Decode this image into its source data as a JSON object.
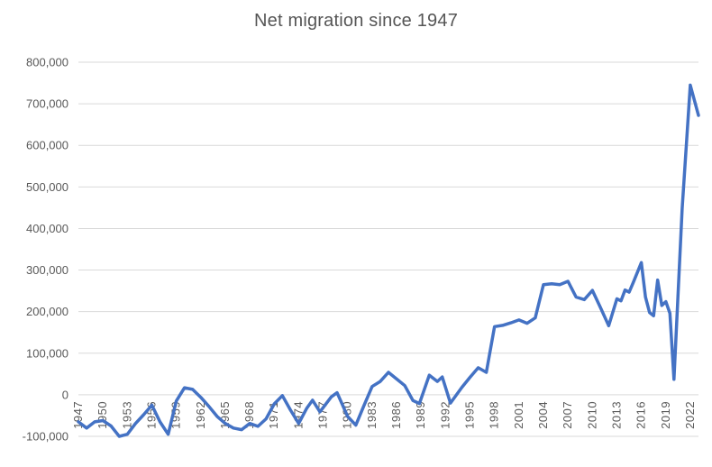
{
  "chart_data": {
    "type": "line",
    "title": "Net migration since 1947",
    "xlabel": "",
    "ylabel": "",
    "xlim": [
      1947,
      2023
    ],
    "ylim": [
      -100000,
      800000
    ],
    "grid": "horizontal-only",
    "legend": "none",
    "colors": {
      "line": "#4472C4",
      "gridline": "#D9D9D9",
      "tick_text": "#595959",
      "title_text": "#555555",
      "background": "#FFFFFF"
    },
    "y_ticks": [
      {
        "value": 800000,
        "label": "800,000"
      },
      {
        "value": 700000,
        "label": "700,000"
      },
      {
        "value": 600000,
        "label": "600,000"
      },
      {
        "value": 500000,
        "label": "500,000"
      },
      {
        "value": 400000,
        "label": "400,000"
      },
      {
        "value": 300000,
        "label": "300,000"
      },
      {
        "value": 200000,
        "label": "200,000"
      },
      {
        "value": 100000,
        "label": "100,000"
      },
      {
        "value": 0,
        "label": "0"
      },
      {
        "value": -100000,
        "label": "-100,000"
      }
    ],
    "x_ticks": [
      {
        "value": 1947,
        "label": "1947"
      },
      {
        "value": 1950,
        "label": "1950"
      },
      {
        "value": 1953,
        "label": "1953"
      },
      {
        "value": 1956,
        "label": "1956"
      },
      {
        "value": 1959,
        "label": "1959"
      },
      {
        "value": 1962,
        "label": "1962"
      },
      {
        "value": 1965,
        "label": "1965"
      },
      {
        "value": 1968,
        "label": "1968"
      },
      {
        "value": 1971,
        "label": "1971"
      },
      {
        "value": 1974,
        "label": "1974"
      },
      {
        "value": 1977,
        "label": "1977"
      },
      {
        "value": 1980,
        "label": "1980"
      },
      {
        "value": 1983,
        "label": "1983"
      },
      {
        "value": 1986,
        "label": "1986"
      },
      {
        "value": 1989,
        "label": "1989"
      },
      {
        "value": 1992,
        "label": "1992"
      },
      {
        "value": 1995,
        "label": "1995"
      },
      {
        "value": 1998,
        "label": "1998"
      },
      {
        "value": 2001,
        "label": "2001"
      },
      {
        "value": 2004,
        "label": "2004"
      },
      {
        "value": 2007,
        "label": "2007"
      },
      {
        "value": 2010,
        "label": "2010"
      },
      {
        "value": 2013,
        "label": "2013"
      },
      {
        "value": 2016,
        "label": "2016"
      },
      {
        "value": 2019,
        "label": "2019"
      },
      {
        "value": 2022,
        "label": "2022"
      }
    ],
    "series": [
      {
        "name": "Net migration",
        "points": [
          [
            1947,
            -65000
          ],
          [
            1948,
            -80000
          ],
          [
            1949,
            -65000
          ],
          [
            1950,
            -62000
          ],
          [
            1951,
            -75000
          ],
          [
            1952,
            -100000
          ],
          [
            1953,
            -95000
          ],
          [
            1954,
            -69000
          ],
          [
            1955,
            -48000
          ],
          [
            1956,
            -25000
          ],
          [
            1957,
            -65000
          ],
          [
            1958,
            -95000
          ],
          [
            1959,
            -15000
          ],
          [
            1960,
            17000
          ],
          [
            1961,
            13000
          ],
          [
            1962,
            -6000
          ],
          [
            1963,
            -28000
          ],
          [
            1964,
            -52000
          ],
          [
            1965,
            -69000
          ],
          [
            1966,
            -80000
          ],
          [
            1967,
            -84000
          ],
          [
            1968,
            -69000
          ],
          [
            1969,
            -76000
          ],
          [
            1970,
            -58000
          ],
          [
            1971,
            -22000
          ],
          [
            1972,
            -2000
          ],
          [
            1973,
            -37000
          ],
          [
            1974,
            -69000
          ],
          [
            1975,
            -32000
          ],
          [
            1975.7,
            -13000
          ],
          [
            1976.6,
            -41000
          ],
          [
            1978,
            -5000
          ],
          [
            1978.7,
            5000
          ],
          [
            1980,
            -52000
          ],
          [
            1981,
            -73000
          ],
          [
            1982,
            -26000
          ],
          [
            1983,
            20000
          ],
          [
            1984,
            32000
          ],
          [
            1985,
            54000
          ],
          [
            1986,
            38000
          ],
          [
            1987,
            22000
          ],
          [
            1988,
            -14000
          ],
          [
            1988.8,
            -21000
          ],
          [
            1990,
            47000
          ],
          [
            1991,
            32000
          ],
          [
            1991.6,
            43000
          ],
          [
            1992.6,
            -20000
          ],
          [
            1994,
            18000
          ],
          [
            1995,
            42000
          ],
          [
            1996,
            65000
          ],
          [
            1997,
            54000
          ],
          [
            1998,
            164000
          ],
          [
            1999,
            167000
          ],
          [
            2000,
            173000
          ],
          [
            2001,
            180000
          ],
          [
            2002,
            172000
          ],
          [
            2003,
            185000
          ],
          [
            2004,
            265000
          ],
          [
            2005,
            267000
          ],
          [
            2006,
            265000
          ],
          [
            2007,
            273000
          ],
          [
            2008,
            235000
          ],
          [
            2009,
            229000
          ],
          [
            2010,
            251000
          ],
          [
            2011,
            209000
          ],
          [
            2012,
            166000
          ],
          [
            2013,
            231000
          ],
          [
            2013.5,
            226000
          ],
          [
            2014,
            252000
          ],
          [
            2014.5,
            247000
          ],
          [
            2015,
            270000
          ],
          [
            2016,
            318000
          ],
          [
            2016.5,
            235000
          ],
          [
            2017,
            198000
          ],
          [
            2017.5,
            190000
          ],
          [
            2018,
            276000
          ],
          [
            2018.5,
            215000
          ],
          [
            2019,
            224000
          ],
          [
            2019.5,
            196000
          ],
          [
            2020,
            37000
          ],
          [
            2021,
            448000
          ],
          [
            2022,
            745000
          ],
          [
            2023,
            672000
          ]
        ]
      }
    ]
  }
}
